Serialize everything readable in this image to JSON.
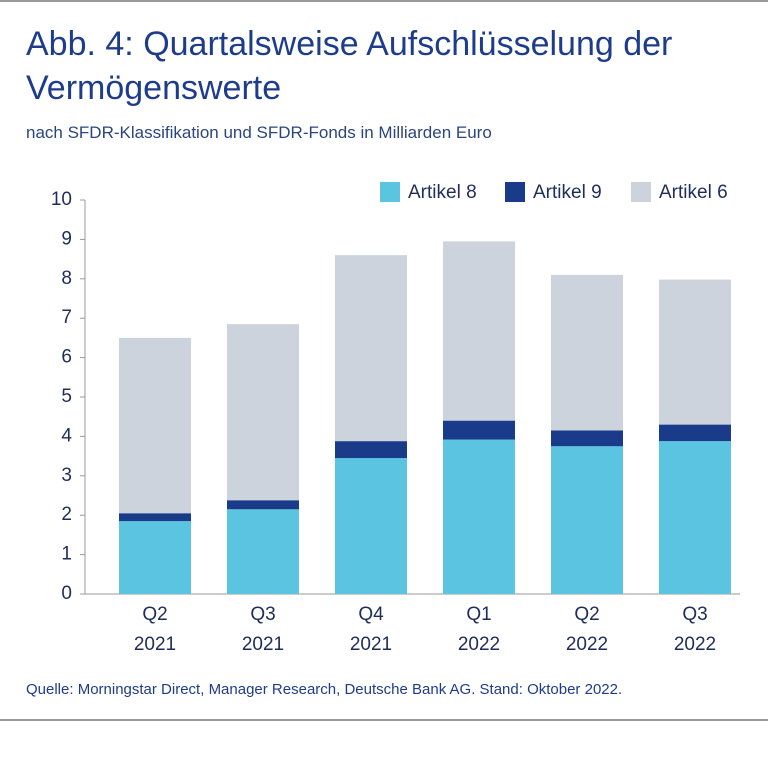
{
  "chart_data": {
    "type": "stacked-bar",
    "title": "Abb. 4: Quartalsweise Aufschlüsselung der Vermögenswerte",
    "subtitle": "nach SFDR-Klassifikation und SFDR-Fonds in Milliarden Euro",
    "source": "Quelle: Morningstar Direct, Manager Research, Deutsche Bank AG. Stand: Oktober 2022.",
    "categories": [
      "Q2\n2021",
      "Q3\n2021",
      "Q4\n2021",
      "Q1\n2022",
      "Q2\n2022",
      "Q3\n2022"
    ],
    "series": [
      {
        "name": "Artikel 8",
        "color": "#5bc4e0",
        "values": [
          1.85,
          2.15,
          3.45,
          3.92,
          3.75,
          3.88
        ]
      },
      {
        "name": "Artikel 9",
        "color": "#1a3a8a",
        "values": [
          0.2,
          0.23,
          0.43,
          0.48,
          0.4,
          0.42
        ]
      },
      {
        "name": "Artikel 6",
        "color": "#ccd3dc",
        "values": [
          4.45,
          4.47,
          4.72,
          4.55,
          3.95,
          3.68
        ]
      }
    ],
    "ylim": [
      0,
      10
    ],
    "yticks": [
      0,
      1,
      2,
      3,
      4,
      5,
      6,
      7,
      8,
      9,
      10
    ],
    "legend": "top-right"
  }
}
